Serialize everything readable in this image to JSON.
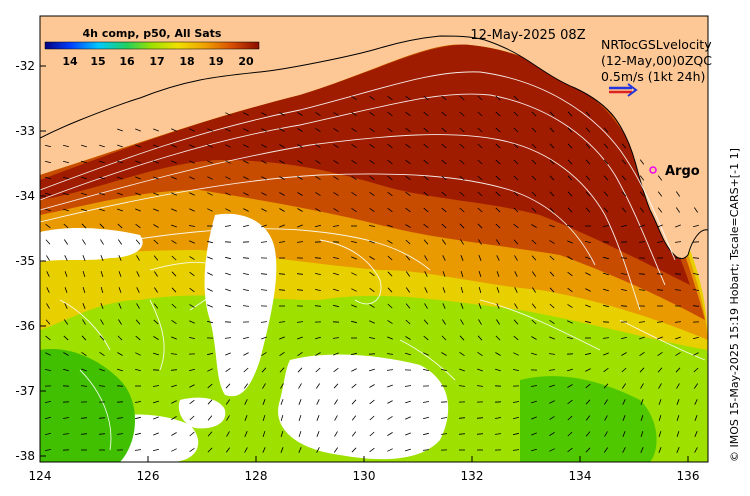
{
  "map": {
    "date_label": "12-May-2025 08Z",
    "colorbar": {
      "title": "4h comp, p50, All Sats",
      "ticks": [
        "14",
        "15",
        "16",
        "17",
        "18",
        "19",
        "20"
      ]
    },
    "legend": {
      "line1": "NRTocGSLvelocity",
      "line2": "(12-May,00)0ZQC",
      "line3": "0.5m/s (1kt 24h)",
      "arrow_colors": [
        "#2233dd",
        "#dd2222"
      ]
    },
    "argo_label": "Argo",
    "credit": "© IMOS 15-May-2025 15:19 Hobart; Tscale=CARS+[-1 1]",
    "y_ticks": [
      "-32",
      "-33",
      "-34",
      "-35",
      "-36",
      "-37",
      "-38"
    ],
    "x_ticks": [
      "124",
      "126",
      "128",
      "130",
      "132",
      "134",
      "136"
    ],
    "colors": {
      "land": "#fdc896",
      "warm": "#a01c00",
      "orange": "#e8a000",
      "green": "#66d800",
      "cloud": "#ffffff",
      "argo": "#ee00ee"
    }
  }
}
